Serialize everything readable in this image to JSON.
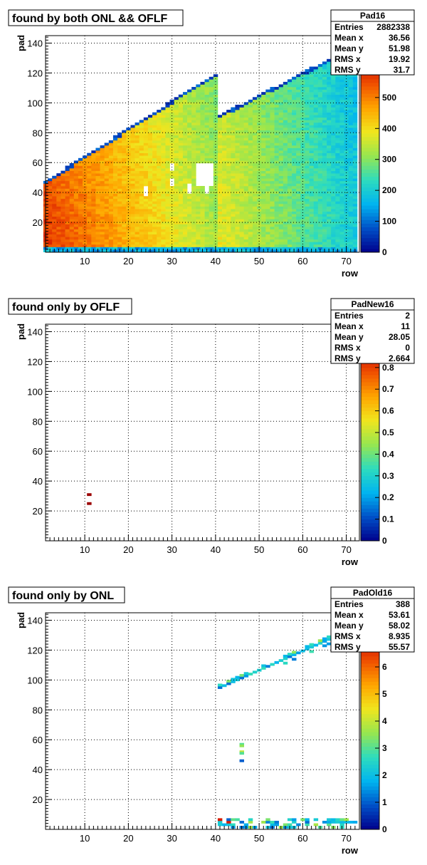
{
  "chart_data": [
    {
      "type": "heatmap",
      "title": "found by both ONL && OFLF",
      "hist_name": "Pad16",
      "stats": [
        {
          "label": "Entries",
          "value": "2882338"
        },
        {
          "label": "Mean x",
          "value": "36.56"
        },
        {
          "label": "Mean y",
          "value": "51.98"
        },
        {
          "label": "RMS x",
          "value": "19.92"
        },
        {
          "label": "RMS y",
          "value": "31.7"
        }
      ],
      "xlabel": "row",
      "ylabel": "pad",
      "xlim": [
        1,
        73
      ],
      "ylim": [
        0,
        145
      ],
      "x_ticks": [
        "10",
        "20",
        "30",
        "40",
        "50",
        "60",
        "70"
      ],
      "y_ticks": [
        "20",
        "40",
        "60",
        "80",
        "100",
        "120",
        "140"
      ],
      "zlim": [
        0,
        700
      ],
      "z_ticks": [
        "0",
        "100",
        "200",
        "300",
        "400",
        "500"
      ],
      "grid": true,
      "colormap": [
        "#00008b",
        "#0050c8",
        "#00b4f0",
        "#2ddcbe",
        "#96e650",
        "#f0e61e",
        "#ffa500",
        "#f05000",
        "#c80000",
        "#8b0000"
      ],
      "summary": "Dense occupancy above pad 0 up to an edge rising from pad ~48 at row 1 to ~120 at row 40 and ~140 at row 72; high counts (red) at low rows, decreasing to green/cyan at high rows; gap near row 40.",
      "holes": [
        {
          "row": 24,
          "pad": 41
        },
        {
          "row": 30,
          "pad": 57
        },
        {
          "row": 30,
          "pad": 47
        },
        {
          "row": 34,
          "pad": 43
        },
        {
          "row": 38,
          "pad": 43
        },
        {
          "row": 37,
          "pad": 52
        }
      ],
      "sector_boundary_row": 40.5
    },
    {
      "type": "heatmap",
      "title": "found only by OFLF",
      "hist_name": "PadNew16",
      "stats": [
        {
          "label": "Entries",
          "value": "2"
        },
        {
          "label": "Mean x",
          "value": "11"
        },
        {
          "label": "Mean y",
          "value": "28.05"
        },
        {
          "label": "RMS x",
          "value": "0"
        },
        {
          "label": "RMS y",
          "value": "2.664"
        }
      ],
      "xlabel": "row",
      "ylabel": "pad",
      "xlim": [
        1,
        73
      ],
      "ylim": [
        0,
        145
      ],
      "x_ticks": [
        "10",
        "20",
        "30",
        "40",
        "50",
        "60",
        "70"
      ],
      "y_ticks": [
        "20",
        "40",
        "60",
        "80",
        "100",
        "120",
        "140"
      ],
      "zlim": [
        0,
        1
      ],
      "z_ticks": [
        "0",
        "0.1",
        "0.2",
        "0.3",
        "0.4",
        "0.5",
        "0.6",
        "0.7",
        "0.8"
      ],
      "grid": true,
      "points": [
        {
          "row": 11,
          "pad": 31,
          "z": 1
        },
        {
          "row": 11,
          "pad": 25,
          "z": 1
        }
      ]
    },
    {
      "type": "heatmap",
      "title": "found only by ONL",
      "hist_name": "PadOld16",
      "stats": [
        {
          "label": "Entries",
          "value": "388"
        },
        {
          "label": "Mean x",
          "value": "53.61"
        },
        {
          "label": "Mean y",
          "value": "58.02"
        },
        {
          "label": "RMS x",
          "value": "8.935"
        },
        {
          "label": "RMS y",
          "value": "55.57"
        }
      ],
      "xlabel": "row",
      "ylabel": "pad",
      "xlim": [
        1,
        73
      ],
      "ylim": [
        0,
        145
      ],
      "x_ticks": [
        "10",
        "20",
        "30",
        "40",
        "50",
        "60",
        "70"
      ],
      "y_ticks": [
        "20",
        "40",
        "60",
        "80",
        "100",
        "120",
        "140"
      ],
      "zlim": [
        0,
        8
      ],
      "z_ticks": [
        "0",
        "1",
        "2",
        "3",
        "4",
        "5",
        "6",
        "7"
      ],
      "grid": true,
      "summary": "Diagonal band along upper edge from row 41 (pad ~95) to row 72 (pad ~135), cluster at row 46 (pads 46-57), and a strip at pads 1-9 for rows 41-72.",
      "points": [
        {
          "row": 46,
          "pad": 57,
          "z": 3
        },
        {
          "row": 46,
          "pad": 56,
          "z": 3.5
        },
        {
          "row": 46,
          "pad": 52,
          "z": 4
        },
        {
          "row": 46,
          "pad": 51,
          "z": 3
        },
        {
          "row": 46,
          "pad": 46,
          "z": 1
        }
      ]
    }
  ]
}
